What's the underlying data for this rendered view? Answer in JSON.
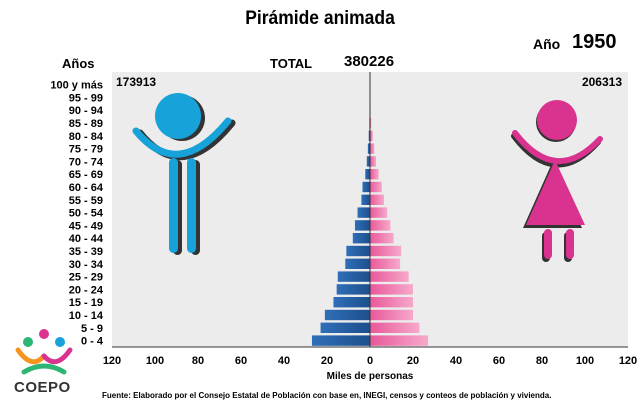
{
  "header": {
    "title": "Pirámide animada",
    "year_label": "Año",
    "year": "1950",
    "age_axis_label": "Años",
    "total_label": "TOTAL",
    "total": "380226"
  },
  "chart_data": {
    "type": "bar",
    "orientation": "horizontal-population-pyramid",
    "categories": [
      "0 - 4",
      "5 - 9",
      "10 - 14",
      "15 - 19",
      "20 - 24",
      "25 - 29",
      "30 - 34",
      "35 - 39",
      "40 - 44",
      "45 - 49",
      "50 - 54",
      "55 - 59",
      "60 - 64",
      "65 - 69",
      "70 - 74",
      "75 - 79",
      "80 - 84",
      "85 - 89",
      "90 - 94",
      "95 - 99",
      "100 y más"
    ],
    "series": [
      {
        "name": "",
        "side": "left",
        "total": "173913",
        "values": [
          27,
          23,
          21,
          17,
          15.5,
          15,
          11.5,
          11,
          8,
          7,
          5.8,
          4,
          3.5,
          2.2,
          1.5,
          1,
          0.6,
          0.3,
          0.1,
          0,
          0
        ]
      },
      {
        "name": "",
        "side": "right",
        "total": "206313",
        "values": [
          27,
          23,
          20,
          20,
          20,
          18,
          14,
          14.5,
          11,
          9.5,
          8,
          6.5,
          5.5,
          4,
          2.8,
          2,
          1.3,
          0.6,
          0.3,
          0.1,
          0
        ]
      }
    ],
    "xticks": [
      "120",
      "100",
      "80",
      "60",
      "40",
      "20",
      "0",
      "20",
      "40",
      "60",
      "80",
      "100",
      "120"
    ],
    "xlim": [
      -120,
      120
    ],
    "xlabel": "Miles de personas",
    "colors": {
      "left": "#2f6fb8",
      "left_dark": "#1d4f8c",
      "right": "#ee6aa6",
      "right_light": "#f7a9cb",
      "panel": "#ececec",
      "male_icon": "#17a2da",
      "female_icon": "#d9338f"
    },
    "grid": false
  },
  "footer": {
    "source": "Fuente: Elaborado por el Consejo Estatal de Población con base en, INEGI, censos y conteos de población y vivienda.",
    "logo_text": "COEPO"
  }
}
